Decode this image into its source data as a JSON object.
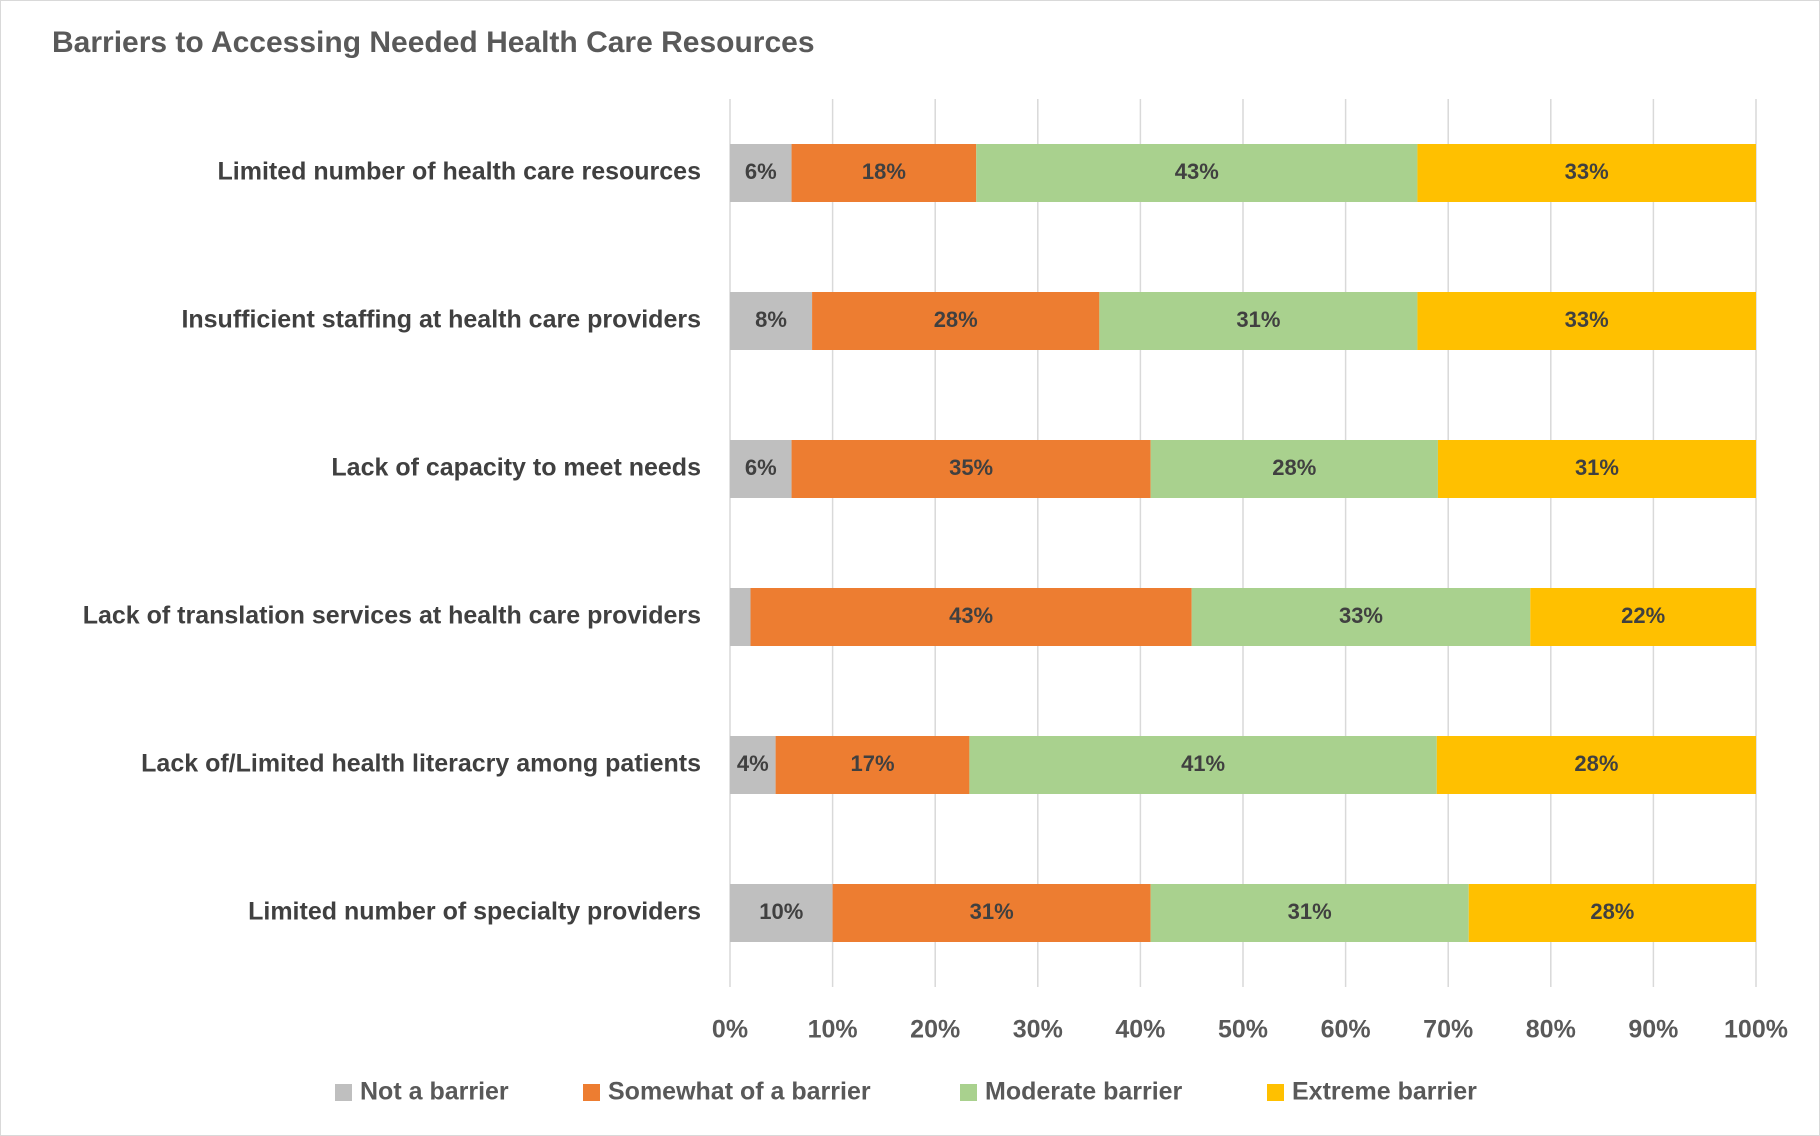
{
  "chart_data": {
    "type": "bar",
    "orientation": "horizontal",
    "stack": "percent",
    "title": "Barriers to Accessing Needed Health Care Resources",
    "categories": [
      "Limited number of health care resources",
      "Insufficient staffing at health care providers",
      "Lack of capacity to meet needs",
      "Lack of translation services at health care providers",
      "Lack of/Limited health literacry among patients",
      "Limited number of specialty providers"
    ],
    "series": [
      {
        "name": "Not a barrier",
        "color": "#bfbfbf",
        "values": [
          6,
          8,
          6,
          2,
          4,
          10
        ],
        "value_labels": [
          "6%",
          "8%",
          "6%",
          null,
          "4%",
          "10%"
        ]
      },
      {
        "name": "Somewhat of a barrier",
        "color": "#ed7d31",
        "values": [
          18,
          28,
          35,
          43,
          17,
          31
        ],
        "value_labels": [
          "18%",
          "28%",
          "35%",
          "43%",
          "17%",
          "31%"
        ]
      },
      {
        "name": "Moderate barrier",
        "color": "#a9d18e",
        "values": [
          43,
          31,
          28,
          33,
          41,
          31
        ],
        "value_labels": [
          "43%",
          "31%",
          "28%",
          "33%",
          "41%",
          "31%"
        ]
      },
      {
        "name": "Extreme barrier",
        "color": "#ffc000",
        "values": [
          33,
          33,
          31,
          22,
          28,
          28
        ],
        "value_labels": [
          "33%",
          "33%",
          "31%",
          "22%",
          "28%",
          "28%"
        ]
      }
    ],
    "xlim": [
      0,
      100
    ],
    "xticks": [
      {
        "value": 0,
        "label": "0%"
      },
      {
        "value": 10,
        "label": "10%"
      },
      {
        "value": 20,
        "label": "20%"
      },
      {
        "value": 30,
        "label": "30%"
      },
      {
        "value": 40,
        "label": "40%"
      },
      {
        "value": 50,
        "label": "50%"
      },
      {
        "value": 60,
        "label": "60%"
      },
      {
        "value": 70,
        "label": "70%"
      },
      {
        "value": 80,
        "label": "80%"
      },
      {
        "value": 90,
        "label": "90%"
      },
      {
        "value": 100,
        "label": "100%"
      }
    ],
    "grid": true,
    "legend": "bottom"
  }
}
